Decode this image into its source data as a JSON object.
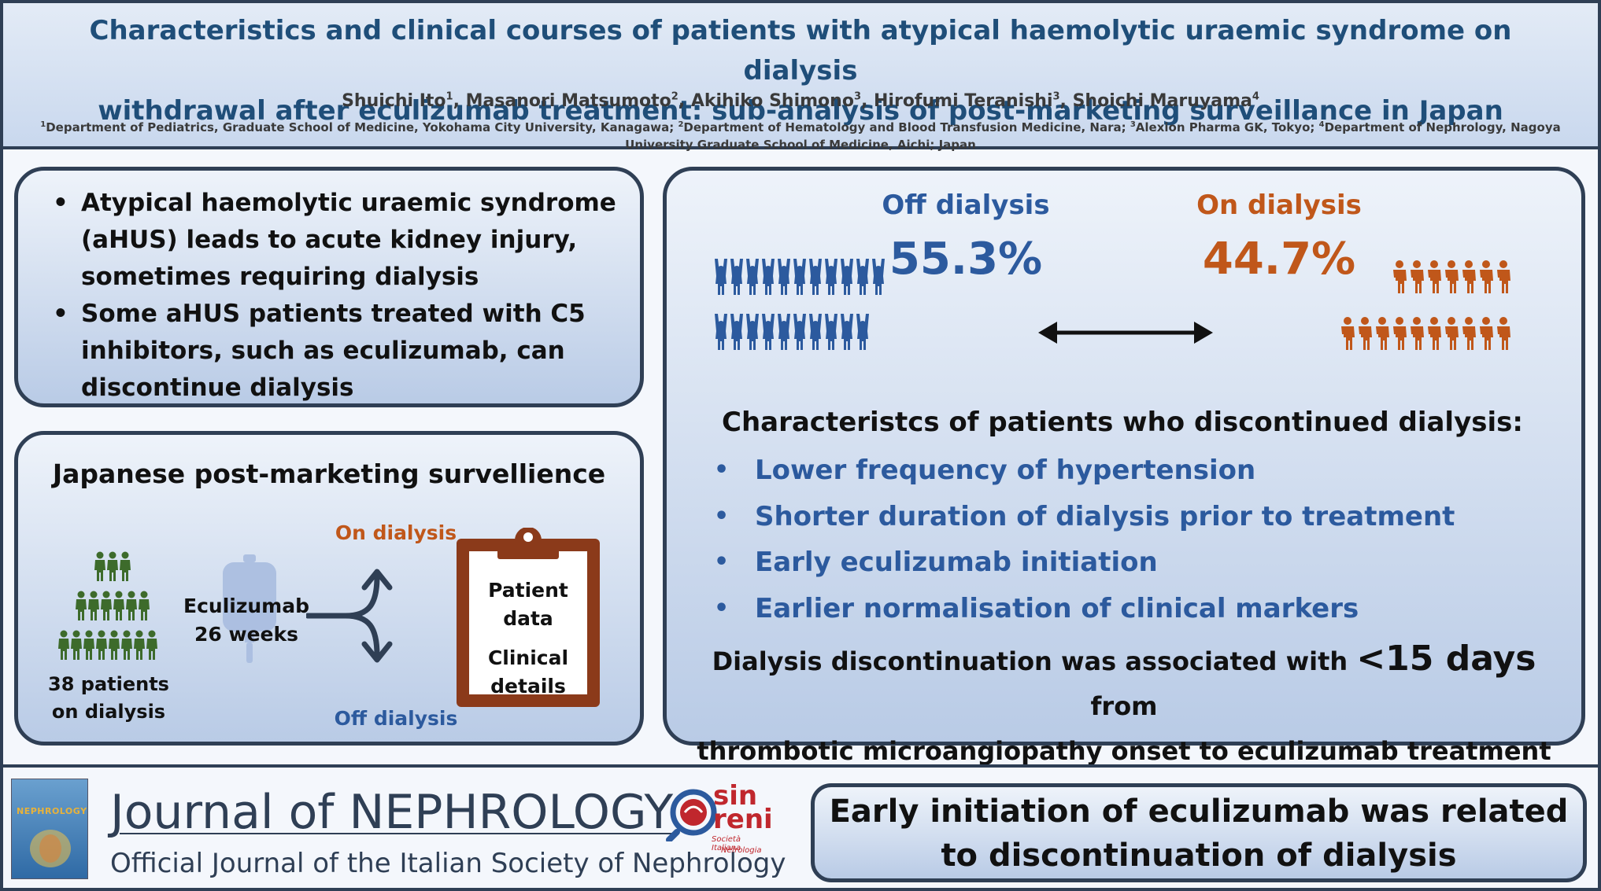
{
  "header": {
    "title_line1": "Characteristics and clinical courses of patients with atypical haemolytic uraemic syndrome on dialysis",
    "title_line2": "withdrawal after eculizumab treatment: sub-analysis of post-marketing surveillance in Japan",
    "authors": [
      {
        "name": "Shuichi Ito",
        "sup": "1"
      },
      {
        "name": "Masanori Matsumoto",
        "sup": "2"
      },
      {
        "name": "Akihiko Shimono",
        "sup": "3"
      },
      {
        "name": "Hirofumi Teranishi",
        "sup": "3"
      },
      {
        "name": "Shoichi Maruyama",
        "sup": "4"
      }
    ],
    "affiliations": [
      {
        "sup": "1",
        "text": "Department of Pediatrics, Graduate School of Medicine, Yokohama City University, Kanagawa; "
      },
      {
        "sup": "2",
        "text": "Department of Hematology and Blood Transfusion Medicine, Nara; "
      },
      {
        "sup": "3",
        "text": "Alexion Pharma GK, Tokyo; "
      },
      {
        "sup": "4",
        "text": "Department of Nephrology, Nagoya University Graduate School of Medicine, Aichi; Japan"
      }
    ]
  },
  "intro": {
    "bullets": [
      "Atypical haemolytic uraemic syndrome (aHUS) leads to acute kidney injury, sometimes requiring dialysis",
      "Some aHUS patients treated with C5 inhibitors, such as eculizumab, can discontinue dialysis"
    ]
  },
  "pms": {
    "title": "Japanese post-marketing survellience",
    "patients_label_line1": "38 patients",
    "patients_label_line2": "on dialysis",
    "drug_line1": "Eculizumab",
    "drug_line2": "26 weeks",
    "on_dialysis": "On dialysis",
    "off_dialysis": "Off dialysis",
    "clipboard_line1": "Patient",
    "clipboard_line2": "data",
    "clipboard_line3": "Clinical",
    "clipboard_line4": "details"
  },
  "results": {
    "off_label": "Off dialysis",
    "off_pct": "55.3%",
    "on_label": "On dialysis",
    "on_pct": "44.7%",
    "characteristics_title": "Characteristcs of patients who discontinued dialysis:",
    "characteristics": [
      "Lower frequency of hypertension",
      "Shorter duration of dialysis prior to treatment",
      "Early eculizumab initiation",
      "Earlier normalisation of clinical markers"
    ],
    "conclusion_pre": "Dialysis discontinuation was associated with ",
    "conclusion_big": "<15 days",
    "conclusion_post": " from",
    "conclusion_line2": "thrombotic microangiopathy onset to eculizumab treatment"
  },
  "footer": {
    "cover_text": "NEPHROLOGY",
    "journal_name": "Journal of NEPHROLOGY",
    "journal_sub": "Official Journal of the Italian Society of Nephrology",
    "sin_logo_text1": "sin",
    "sin_logo_text2": "reni",
    "sin_logo_text3": "Società Italiana",
    "sin_logo_text4": "Nefrologia",
    "takeaway_line1": "Early initiation of eculizumab was related",
    "takeaway_line2": "to discontinuation of dialysis"
  },
  "colors": {
    "navy": "#2f3f55",
    "title_blue": "#1f4e79",
    "accent_blue": "#2c5a9e",
    "accent_orange": "#c0571a",
    "green": "#3d6b2b",
    "brown": "#8b3a1a"
  },
  "icons": [
    "person-icon",
    "iv-bag-icon",
    "fork-arrow-icon",
    "clipboard-icon",
    "double-arrow-icon",
    "journal-cover-icon",
    "sin-logo-icon"
  ]
}
